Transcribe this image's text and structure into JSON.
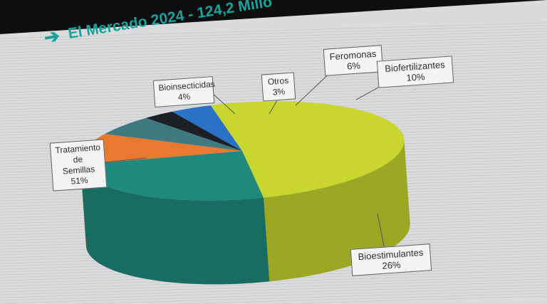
{
  "header": {
    "arrow_icon": "arrow-right-icon",
    "title": "El Mercado 2024 - 124,2 Millo"
  },
  "chart_data": {
    "type": "pie",
    "style": "3d",
    "title": "El Mercado 2024 - 124,2 Millo",
    "legend": "none",
    "slices": [
      {
        "label": "Tratamiento de Semillas",
        "value": 51,
        "display": "51%",
        "color": "#c8d62e"
      },
      {
        "label": "Bioestimulantes",
        "value": 26,
        "display": "26%",
        "color": "#1f8a7c"
      },
      {
        "label": "Biofertilizantes",
        "value": 10,
        "display": "10%",
        "color": "#e8792f"
      },
      {
        "label": "Feromonas",
        "value": 6,
        "display": "6%",
        "color": "#3f7a82"
      },
      {
        "label": "Otros",
        "value": 3,
        "display": "3%",
        "color": "#1c1f24"
      },
      {
        "label": "Bioinsecticidas",
        "value": 4,
        "display": "4%",
        "color": "#2a72c8"
      }
    ],
    "labels": {
      "tratamiento_l1": "Tratamiento de",
      "tratamiento_l2": "Semillas",
      "tratamiento_pct": "51%",
      "bioinsecticidas": "Bioinsecticidas",
      "bioinsecticidas_pct": "4%",
      "otros": "Otros",
      "otros_pct": "3%",
      "feromonas": "Feromonas",
      "feromonas_pct": "6%",
      "biofertilizantes": "Biofertilizantes",
      "biofertilizantes_pct": "10%",
      "bioestimulantes": "Bioestimulantes",
      "bioestimulantes_pct": "26%"
    }
  }
}
